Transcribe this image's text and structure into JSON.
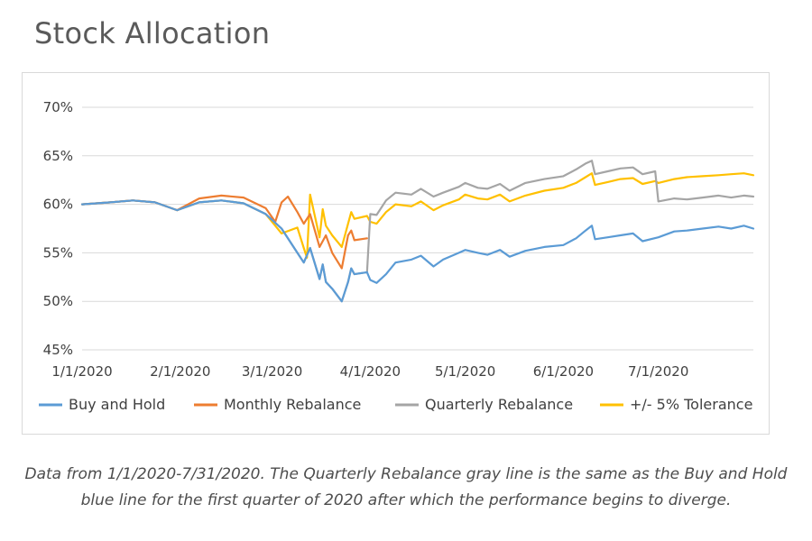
{
  "page": {
    "title": "Stock Allocation",
    "caption": "Data from 1/1/2020-7/31/2020. The Quarterly Rebalance gray line is the same as the Buy and Hold blue line for the first quarter of 2020 after which the performance begins to diverge."
  },
  "chart_data": {
    "type": "line",
    "title": "",
    "xlabel": "",
    "ylabel": "",
    "x_range": [
      "2020-01-01",
      "2020-07-31"
    ],
    "ylim": [
      45,
      70
    ],
    "y_ticks": [
      45,
      50,
      55,
      60,
      65,
      70
    ],
    "y_tick_labels": [
      "45%",
      "50%",
      "55%",
      "60%",
      "65%",
      "70%"
    ],
    "x_ticks": [
      "2020-01-01",
      "2020-02-01",
      "2020-03-01",
      "2020-04-01",
      "2020-05-01",
      "2020-06-01",
      "2020-07-01"
    ],
    "x_tick_labels": [
      "1/1/2020",
      "2/1/2020",
      "3/1/2020",
      "4/1/2020",
      "5/1/2020",
      "6/1/2020",
      "7/1/2020"
    ],
    "grid": "horizontal",
    "legend_position": "bottom",
    "series": [
      {
        "name": "Buy and Hold",
        "color": "#5b9bd5",
        "points": [
          [
            "2020-01-01",
            60.0
          ],
          [
            "2020-01-10",
            60.2
          ],
          [
            "2020-01-17",
            60.4
          ],
          [
            "2020-01-24",
            60.2
          ],
          [
            "2020-01-31",
            59.4
          ],
          [
            "2020-02-07",
            60.2
          ],
          [
            "2020-02-14",
            60.4
          ],
          [
            "2020-02-21",
            60.1
          ],
          [
            "2020-02-28",
            59.0
          ],
          [
            "2020-03-04",
            57.5
          ],
          [
            "2020-03-09",
            55.0
          ],
          [
            "2020-03-11",
            54.0
          ],
          [
            "2020-03-13",
            55.5
          ],
          [
            "2020-03-16",
            52.3
          ],
          [
            "2020-03-17",
            53.8
          ],
          [
            "2020-03-18",
            52.0
          ],
          [
            "2020-03-20",
            51.3
          ],
          [
            "2020-03-23",
            50.0
          ],
          [
            "2020-03-25",
            52.0
          ],
          [
            "2020-03-26",
            53.4
          ],
          [
            "2020-03-27",
            52.8
          ],
          [
            "2020-03-31",
            53.0
          ],
          [
            "2020-04-01",
            52.2
          ],
          [
            "2020-04-03",
            51.9
          ],
          [
            "2020-04-06",
            52.8
          ],
          [
            "2020-04-09",
            54.0
          ],
          [
            "2020-04-14",
            54.3
          ],
          [
            "2020-04-17",
            54.7
          ],
          [
            "2020-04-21",
            53.6
          ],
          [
            "2020-04-24",
            54.3
          ],
          [
            "2020-04-29",
            55.0
          ],
          [
            "2020-05-01",
            55.3
          ],
          [
            "2020-05-05",
            55.0
          ],
          [
            "2020-05-08",
            54.8
          ],
          [
            "2020-05-12",
            55.3
          ],
          [
            "2020-05-15",
            54.6
          ],
          [
            "2020-05-20",
            55.2
          ],
          [
            "2020-05-26",
            55.6
          ],
          [
            "2020-06-01",
            55.8
          ],
          [
            "2020-06-05",
            56.5
          ],
          [
            "2020-06-08",
            57.3
          ],
          [
            "2020-06-10",
            57.8
          ],
          [
            "2020-06-11",
            56.4
          ],
          [
            "2020-06-15",
            56.6
          ],
          [
            "2020-06-19",
            56.8
          ],
          [
            "2020-06-23",
            57.0
          ],
          [
            "2020-06-26",
            56.2
          ],
          [
            "2020-07-01",
            56.6
          ],
          [
            "2020-07-06",
            57.2
          ],
          [
            "2020-07-10",
            57.3
          ],
          [
            "2020-07-15",
            57.5
          ],
          [
            "2020-07-20",
            57.7
          ],
          [
            "2020-07-24",
            57.5
          ],
          [
            "2020-07-28",
            57.8
          ],
          [
            "2020-07-31",
            57.5
          ]
        ]
      },
      {
        "name": "Monthly Rebalance",
        "color": "#ed7d31",
        "points": [
          [
            "2020-01-01",
            60.0
          ],
          [
            "2020-01-10",
            60.2
          ],
          [
            "2020-01-17",
            60.4
          ],
          [
            "2020-01-24",
            60.2
          ],
          [
            "2020-01-31",
            59.4
          ],
          [
            "2020-02-07",
            60.6
          ],
          [
            "2020-02-14",
            60.9
          ],
          [
            "2020-02-21",
            60.7
          ],
          [
            "2020-02-28",
            59.6
          ],
          [
            "2020-03-02",
            58.2
          ],
          [
            "2020-03-04",
            60.2
          ],
          [
            "2020-03-06",
            60.8
          ],
          [
            "2020-03-09",
            59.2
          ],
          [
            "2020-03-11",
            58.0
          ],
          [
            "2020-03-13",
            59.0
          ],
          [
            "2020-03-16",
            55.6
          ],
          [
            "2020-03-18",
            56.8
          ],
          [
            "2020-03-20",
            55.0
          ],
          [
            "2020-03-23",
            53.4
          ],
          [
            "2020-03-25",
            56.8
          ],
          [
            "2020-03-26",
            57.3
          ],
          [
            "2020-03-27",
            56.3
          ],
          [
            "2020-03-31",
            56.5
          ]
        ]
      },
      {
        "name": "Quarterly Rebalance",
        "color": "#a5a5a5",
        "points": [
          [
            "2020-01-01",
            60.0
          ],
          [
            "2020-01-10",
            60.2
          ],
          [
            "2020-01-17",
            60.4
          ],
          [
            "2020-01-24",
            60.2
          ],
          [
            "2020-01-31",
            59.4
          ],
          [
            "2020-02-07",
            60.2
          ],
          [
            "2020-02-14",
            60.4
          ],
          [
            "2020-02-21",
            60.1
          ],
          [
            "2020-02-28",
            59.0
          ],
          [
            "2020-03-04",
            57.5
          ],
          [
            "2020-03-09",
            55.0
          ],
          [
            "2020-03-11",
            54.0
          ],
          [
            "2020-03-13",
            55.5
          ],
          [
            "2020-03-16",
            52.3
          ],
          [
            "2020-03-17",
            53.8
          ],
          [
            "2020-03-18",
            52.0
          ],
          [
            "2020-03-20",
            51.3
          ],
          [
            "2020-03-23",
            50.0
          ],
          [
            "2020-03-25",
            52.0
          ],
          [
            "2020-03-26",
            53.4
          ],
          [
            "2020-03-27",
            52.8
          ],
          [
            "2020-03-31",
            53.0
          ],
          [
            "2020-04-01",
            59.0
          ],
          [
            "2020-04-03",
            58.9
          ],
          [
            "2020-04-06",
            60.4
          ],
          [
            "2020-04-09",
            61.2
          ],
          [
            "2020-04-14",
            61.0
          ],
          [
            "2020-04-17",
            61.6
          ],
          [
            "2020-04-21",
            60.8
          ],
          [
            "2020-04-24",
            61.2
          ],
          [
            "2020-04-29",
            61.8
          ],
          [
            "2020-05-01",
            62.2
          ],
          [
            "2020-05-05",
            61.7
          ],
          [
            "2020-05-08",
            61.6
          ],
          [
            "2020-05-12",
            62.1
          ],
          [
            "2020-05-15",
            61.4
          ],
          [
            "2020-05-20",
            62.2
          ],
          [
            "2020-05-26",
            62.6
          ],
          [
            "2020-06-01",
            62.9
          ],
          [
            "2020-06-05",
            63.6
          ],
          [
            "2020-06-08",
            64.2
          ],
          [
            "2020-06-10",
            64.5
          ],
          [
            "2020-06-11",
            63.1
          ],
          [
            "2020-06-15",
            63.4
          ],
          [
            "2020-06-19",
            63.7
          ],
          [
            "2020-06-23",
            63.8
          ],
          [
            "2020-06-26",
            63.1
          ],
          [
            "2020-06-30",
            63.4
          ],
          [
            "2020-07-01",
            60.3
          ],
          [
            "2020-07-06",
            60.6
          ],
          [
            "2020-07-10",
            60.5
          ],
          [
            "2020-07-15",
            60.7
          ],
          [
            "2020-07-20",
            60.9
          ],
          [
            "2020-07-24",
            60.7
          ],
          [
            "2020-07-28",
            60.9
          ],
          [
            "2020-07-31",
            60.8
          ]
        ]
      },
      {
        "name": "+/- 5% Tolerance",
        "color": "#ffc000",
        "points": [
          [
            "2020-01-01",
            60.0
          ],
          [
            "2020-01-10",
            60.2
          ],
          [
            "2020-01-17",
            60.4
          ],
          [
            "2020-01-24",
            60.2
          ],
          [
            "2020-01-31",
            59.4
          ],
          [
            "2020-02-07",
            60.2
          ],
          [
            "2020-02-14",
            60.4
          ],
          [
            "2020-02-21",
            60.1
          ],
          [
            "2020-02-28",
            59.0
          ],
          [
            "2020-03-04",
            57.0
          ],
          [
            "2020-03-09",
            57.6
          ],
          [
            "2020-03-11",
            55.5
          ],
          [
            "2020-03-12",
            54.5
          ],
          [
            "2020-03-13",
            61.0
          ],
          [
            "2020-03-16",
            56.6
          ],
          [
            "2020-03-17",
            59.5
          ],
          [
            "2020-03-18",
            57.8
          ],
          [
            "2020-03-20",
            56.8
          ],
          [
            "2020-03-23",
            55.6
          ],
          [
            "2020-03-25",
            58.0
          ],
          [
            "2020-03-26",
            59.2
          ],
          [
            "2020-03-27",
            58.5
          ],
          [
            "2020-03-31",
            58.8
          ],
          [
            "2020-04-01",
            58.2
          ],
          [
            "2020-04-03",
            58.0
          ],
          [
            "2020-04-06",
            59.2
          ],
          [
            "2020-04-09",
            60.0
          ],
          [
            "2020-04-14",
            59.8
          ],
          [
            "2020-04-17",
            60.3
          ],
          [
            "2020-04-21",
            59.4
          ],
          [
            "2020-04-24",
            59.9
          ],
          [
            "2020-04-29",
            60.5
          ],
          [
            "2020-05-01",
            61.0
          ],
          [
            "2020-05-05",
            60.6
          ],
          [
            "2020-05-08",
            60.5
          ],
          [
            "2020-05-12",
            61.0
          ],
          [
            "2020-05-15",
            60.3
          ],
          [
            "2020-05-20",
            60.9
          ],
          [
            "2020-05-26",
            61.4
          ],
          [
            "2020-06-01",
            61.7
          ],
          [
            "2020-06-05",
            62.2
          ],
          [
            "2020-06-08",
            62.8
          ],
          [
            "2020-06-10",
            63.2
          ],
          [
            "2020-06-11",
            62.0
          ],
          [
            "2020-06-15",
            62.3
          ],
          [
            "2020-06-19",
            62.6
          ],
          [
            "2020-06-23",
            62.7
          ],
          [
            "2020-06-26",
            62.1
          ],
          [
            "2020-06-30",
            62.4
          ],
          [
            "2020-07-01",
            62.2
          ],
          [
            "2020-07-06",
            62.6
          ],
          [
            "2020-07-10",
            62.8
          ],
          [
            "2020-07-15",
            62.9
          ],
          [
            "2020-07-20",
            63.0
          ],
          [
            "2020-07-24",
            63.1
          ],
          [
            "2020-07-28",
            63.2
          ],
          [
            "2020-07-31",
            63.0
          ]
        ]
      }
    ]
  }
}
